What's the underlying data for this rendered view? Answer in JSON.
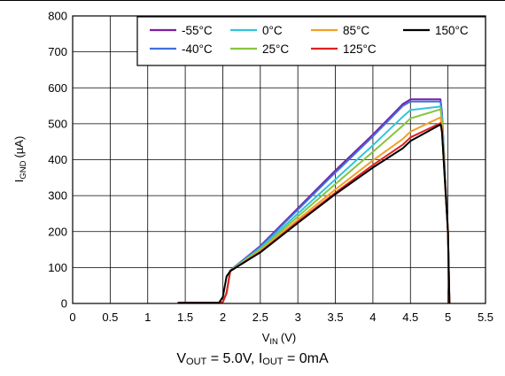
{
  "chart_data": {
    "type": "line",
    "title": "",
    "xlabel": "V",
    "xlabel_sub": "IN",
    "xlabel_unit": "(V)",
    "ylabel": "I",
    "ylabel_sub": "GND",
    "ylabel_unit": "(µA)",
    "xlim": [
      0,
      5.5
    ],
    "ylim": [
      0,
      800
    ],
    "xticks": [
      "0",
      "0.5",
      "1",
      "1.5",
      "2",
      "2.5",
      "3",
      "3.5",
      "4",
      "4.5",
      "5",
      "5.5"
    ],
    "yticks": [
      "0",
      "100",
      "200",
      "300",
      "400",
      "500",
      "600",
      "700",
      "800"
    ],
    "grid": true,
    "legend_position": "top-right",
    "series": [
      {
        "name": "-55°C",
        "color": "#7b1fa2",
        "x": [
          1.4,
          1.95,
          2.0,
          2.05,
          2.1,
          2.5,
          3.0,
          3.5,
          4.0,
          4.4,
          4.5,
          4.9,
          4.91,
          4.92,
          5.0,
          5.02
        ],
        "y": [
          2,
          2,
          4,
          30,
          92,
          160,
          265,
          370,
          470,
          555,
          568,
          568,
          550,
          530,
          200,
          0
        ]
      },
      {
        "name": "-40°C",
        "color": "#3f6fe0",
        "x": [
          1.4,
          1.95,
          2.0,
          2.05,
          2.1,
          2.5,
          3.0,
          3.5,
          4.0,
          4.4,
          4.5,
          4.9,
          4.91,
          4.92,
          5.0,
          5.02
        ],
        "y": [
          2,
          2,
          4,
          30,
          92,
          158,
          261,
          364,
          465,
          550,
          562,
          562,
          545,
          525,
          200,
          0
        ]
      },
      {
        "name": "0°C",
        "color": "#33c4dc",
        "x": [
          1.4,
          1.95,
          2.0,
          2.05,
          2.1,
          2.5,
          3.0,
          3.5,
          4.0,
          4.4,
          4.5,
          4.9,
          4.91,
          4.92,
          5.0,
          5.02
        ],
        "y": [
          2,
          2,
          4,
          30,
          91,
          154,
          250,
          345,
          440,
          520,
          538,
          548,
          535,
          515,
          200,
          0
        ]
      },
      {
        "name": "25°C",
        "color": "#86c53c",
        "x": [
          1.4,
          1.95,
          2.0,
          2.05,
          2.1,
          2.5,
          3.0,
          3.5,
          4.0,
          4.4,
          4.5,
          4.9,
          4.91,
          4.92,
          5.0,
          5.02
        ],
        "y": [
          2,
          2,
          4,
          30,
          91,
          150,
          242,
          332,
          422,
          495,
          515,
          540,
          525,
          505,
          200,
          0
        ]
      },
      {
        "name": "85°C",
        "color": "#f0a028",
        "x": [
          1.4,
          1.95,
          2.0,
          2.05,
          2.1,
          2.5,
          3.0,
          3.5,
          4.0,
          4.4,
          4.5,
          4.9,
          4.91,
          4.92,
          5.0,
          5.02
        ],
        "y": [
          2,
          2,
          4,
          30,
          90,
          146,
          233,
          317,
          398,
          458,
          478,
          518,
          505,
          490,
          200,
          0
        ]
      },
      {
        "name": "125°C",
        "color": "#e02020",
        "x": [
          1.4,
          1.95,
          2.0,
          2.05,
          2.1,
          2.5,
          3.0,
          3.5,
          4.0,
          4.4,
          4.5,
          4.9,
          4.91,
          4.92,
          5.0,
          5.02
        ],
        "y": [
          2,
          2,
          4,
          28,
          90,
          143,
          227,
          308,
          385,
          442,
          462,
          502,
          495,
          480,
          200,
          0
        ]
      },
      {
        "name": "150°C",
        "color": "#000000",
        "x": [
          1.4,
          1.95,
          2.0,
          2.05,
          2.1,
          2.5,
          3.0,
          3.5,
          4.0,
          4.4,
          4.5,
          4.9,
          4.91,
          4.92,
          5.0,
          5.02
        ],
        "y": [
          2,
          2,
          18,
          75,
          90,
          142,
          224,
          304,
          378,
          432,
          452,
          498,
          490,
          475,
          200,
          0
        ]
      }
    ]
  },
  "caption": {
    "v": "V",
    "v_sub": "OUT",
    "v_rest": " = 5.0V, ",
    "i": "I",
    "i_sub": "OUT",
    "i_rest": " = 0mA"
  }
}
